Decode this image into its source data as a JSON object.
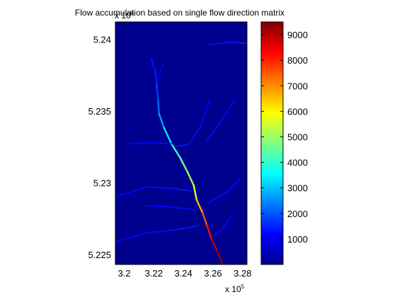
{
  "chart_data": {
    "type": "heatmap",
    "title": "Flow accumulation based on single flow direction matrix",
    "xlabel": "",
    "ylabel": "",
    "x_axis": {
      "range": [
        319400,
        328300
      ],
      "ticks": [
        320000,
        322000,
        324000,
        326000,
        328000
      ],
      "tick_labels": [
        "3.2",
        "3.22",
        "3.24",
        "3.26",
        "3.28"
      ],
      "multiplier_label": "x 10",
      "multiplier_exponent": "5"
    },
    "y_axis": {
      "range": [
        5224300,
        5241200
      ],
      "ticks": [
        5225000,
        5230000,
        5235000,
        5240000
      ],
      "tick_labels": [
        "5.225",
        "5.23",
        "5.235",
        "5.24"
      ],
      "multiplier_label": "x 10",
      "multiplier_exponent": "6"
    },
    "colorbar": {
      "colormap": "jet",
      "range": [
        0,
        9500
      ],
      "ticks": [
        1000,
        2000,
        3000,
        4000,
        5000,
        6000,
        7000,
        8000,
        9000
      ],
      "tick_labels": [
        "1000",
        "2000",
        "3000",
        "4000",
        "5000",
        "6000",
        "7000",
        "8000",
        "9000"
      ],
      "placement": "right"
    },
    "background_value": 0,
    "grid": false,
    "streams": [
      {
        "role": "main channel",
        "points": [
          [
            321850,
            5238600,
            80
          ],
          [
            322100,
            5237800,
            200
          ],
          [
            322200,
            5236800,
            400
          ],
          [
            322300,
            5235700,
            900
          ],
          [
            322350,
            5234800,
            1300
          ],
          [
            322700,
            5233800,
            2000
          ],
          [
            323200,
            5232700,
            2900
          ],
          [
            323800,
            5231700,
            3600
          ],
          [
            324300,
            5230700,
            4100
          ],
          [
            324700,
            5229800,
            4600
          ],
          [
            324900,
            5228800,
            5600
          ],
          [
            325300,
            5227900,
            6900
          ],
          [
            325600,
            5227000,
            7600
          ],
          [
            325900,
            5226100,
            8500
          ],
          [
            326300,
            5225200,
            9100
          ],
          [
            326600,
            5224400,
            9500
          ]
        ]
      },
      {
        "role": "tributary",
        "points": [
          [
            325700,
            5239600,
            100
          ],
          [
            327200,
            5239800,
            250
          ],
          [
            328200,
            5239700,
            400
          ]
        ]
      },
      {
        "role": "tributary",
        "points": [
          [
            325800,
            5235800,
            20
          ],
          [
            325200,
            5234000,
            100
          ],
          [
            324400,
            5232700,
            200
          ],
          [
            323500,
            5232500,
            300
          ]
        ]
      },
      {
        "role": "tributary",
        "points": [
          [
            327500,
            5235800,
            20
          ],
          [
            326500,
            5234200,
            120
          ],
          [
            325600,
            5232900,
            220
          ]
        ]
      },
      {
        "role": "tributary",
        "points": [
          [
            320300,
            5232700,
            20
          ],
          [
            321800,
            5232800,
            100
          ],
          [
            323300,
            5232700,
            200
          ]
        ]
      },
      {
        "role": "tributary",
        "points": [
          [
            319600,
            5229100,
            20
          ],
          [
            321600,
            5229700,
            120
          ],
          [
            323400,
            5229600,
            250
          ],
          [
            324500,
            5229400,
            350
          ]
        ]
      },
      {
        "role": "tributary",
        "points": [
          [
            321500,
            5228400,
            20
          ],
          [
            323200,
            5228300,
            120
          ],
          [
            324800,
            5228100,
            220
          ]
        ]
      },
      {
        "role": "tributary",
        "points": [
          [
            319500,
            5225900,
            20
          ],
          [
            321500,
            5226500,
            120
          ],
          [
            323400,
            5226700,
            200
          ],
          [
            325000,
            5227000,
            300
          ]
        ]
      },
      {
        "role": "tributary",
        "points": [
          [
            327800,
            5230200,
            20
          ],
          [
            326900,
            5229300,
            120
          ],
          [
            325700,
            5228600,
            220
          ]
        ]
      },
      {
        "role": "tributary",
        "points": [
          [
            322600,
            5238200,
            20
          ],
          [
            322300,
            5237200,
            100
          ]
        ]
      },
      {
        "role": "tributary",
        "points": [
          [
            327300,
            5227800,
            20
          ],
          [
            326700,
            5226800,
            100
          ],
          [
            326100,
            5226300,
            200
          ]
        ]
      }
    ]
  }
}
